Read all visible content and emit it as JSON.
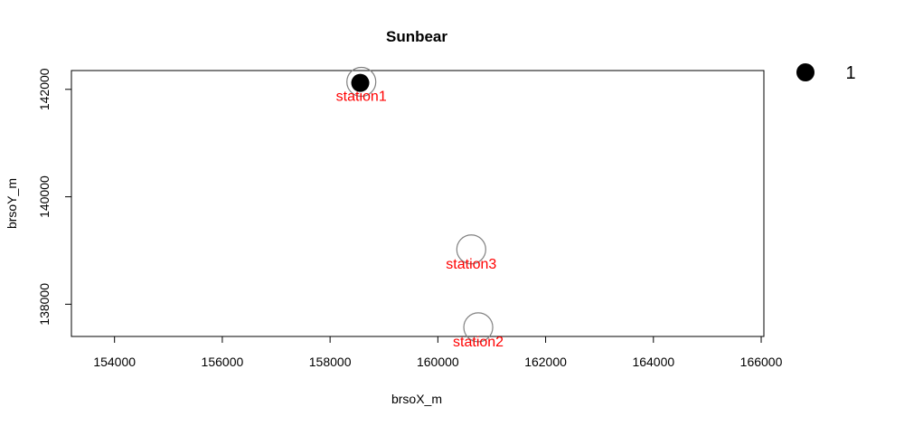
{
  "chart_data": {
    "type": "scatter",
    "title": "Sunbear",
    "xlabel": "brsoX_m",
    "ylabel": "brsoY_m",
    "xlim": [
      153200,
      166050
    ],
    "ylim": [
      137400,
      142350
    ],
    "xticks": [
      154000,
      156000,
      158000,
      160000,
      162000,
      164000,
      166000
    ],
    "yticks": [
      138000,
      140000,
      142000
    ],
    "xtick_labels": [
      "154000",
      "156000",
      "158000",
      "160000",
      "162000",
      "164000",
      "166000"
    ],
    "ytick_labels": [
      "138000",
      "140000",
      "142000"
    ],
    "stations": [
      {
        "label": "station1",
        "x": 158580,
        "y": 142140
      },
      {
        "label": "station3",
        "x": 160620,
        "y": 139020
      },
      {
        "label": "station2",
        "x": 160750,
        "y": 137570
      }
    ],
    "detections": [
      {
        "x": 158560,
        "y": 142120,
        "count": 1
      }
    ],
    "legend": {
      "entries": [
        {
          "label": "1"
        }
      ],
      "position": "top-right"
    },
    "colors": {
      "station_circle": "#808080",
      "station_label": "#ff0000",
      "detection": "#000000",
      "axis": "#000000"
    }
  }
}
